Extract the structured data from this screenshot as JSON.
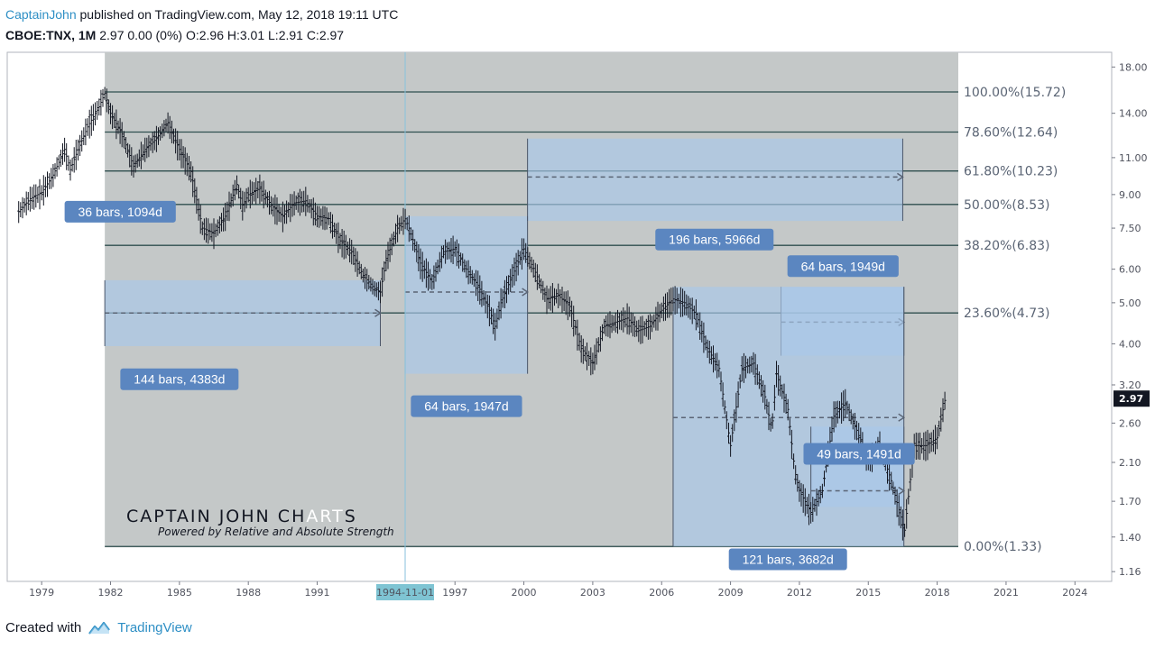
{
  "header": {
    "author": "CaptainJohn",
    "published": "published on TradingView.com, May 12, 2018 19:11 UTC"
  },
  "ohlc": {
    "symbol": "CBOE:TNX, 1M",
    "values": "2.97 0.00 (0%) O:2.96 H:3.01 L:2.91 C:2.97"
  },
  "footer": {
    "created_with": "Created with",
    "brand": "TradingView"
  },
  "watermark": {
    "title": "CAPTAIN JOHN CHARTS",
    "subtitle": "Powered by Relative and  Absolute Strength"
  },
  "colors": {
    "fib_bg": "#c4c8c8",
    "box_fill": "#a9c8ea",
    "label_bg": "#5b86c0",
    "fib_line": "#2f4f4f",
    "price_line": "#131722",
    "crosshair": "#88c2dc",
    "date_highlight": "#7fc4d3",
    "price_badge": "#131722",
    "accent": "#2e8fc5"
  },
  "chart_data": {
    "type": "line",
    "series": [
      {
        "x": [
          1978.0,
          1978.5,
          1979.0,
          1979.5,
          1980.0,
          1980.25,
          1980.5,
          1981.0,
          1981.5,
          1981.75,
          1982.0,
          1982.5,
          1983.0,
          1983.5,
          1984.0,
          1984.5,
          1985.0,
          1985.5,
          1986.0,
          1986.5,
          1987.0,
          1987.5,
          1987.75,
          1988.0,
          1988.5,
          1989.0,
          1989.5,
          1990.0,
          1990.5,
          1991.0,
          1991.5,
          1992.0,
          1992.5,
          1993.0,
          1993.5,
          1993.75,
          1994.0,
          1994.5,
          1994.83,
          1995.0,
          1995.5,
          1996.0,
          1996.5,
          1997.0,
          1997.5,
          1998.0,
          1998.5,
          1998.75,
          1999.0,
          1999.5,
          2000.0,
          2000.5,
          2001.0,
          2001.5,
          2002.0,
          2002.5,
          2003.0,
          2003.5,
          2004.0,
          2004.5,
          2005.0,
          2005.5,
          2006.0,
          2006.5,
          2007.0,
          2007.5,
          2008.0,
          2008.5,
          2008.9,
          2009.0,
          2009.5,
          2010.0,
          2010.5,
          2010.8,
          2011.0,
          2011.5,
          2011.8,
          2012.0,
          2012.5,
          2013.0,
          2013.5,
          2014.0,
          2014.5,
          2015.0,
          2015.5,
          2016.0,
          2016.5,
          2016.55,
          2017.0,
          2017.5,
          2018.0,
          2018.35
        ],
        "y": [
          8.2,
          8.8,
          9.1,
          10.0,
          11.5,
          10.3,
          11.2,
          13.0,
          14.5,
          15.6,
          14.0,
          12.5,
          10.5,
          11.5,
          12.2,
          13.3,
          11.5,
          10.2,
          7.5,
          7.3,
          8.0,
          9.5,
          8.5,
          9.0,
          9.3,
          8.5,
          8.0,
          8.6,
          8.7,
          8.0,
          7.9,
          7.0,
          6.6,
          5.8,
          5.4,
          5.3,
          6.3,
          7.5,
          7.9,
          7.5,
          6.2,
          5.6,
          6.6,
          6.7,
          6.0,
          5.5,
          4.8,
          4.4,
          5.0,
          5.8,
          6.7,
          5.9,
          5.1,
          5.2,
          4.9,
          3.9,
          3.6,
          4.4,
          4.5,
          4.6,
          4.3,
          4.4,
          4.8,
          5.1,
          5.0,
          4.7,
          3.9,
          3.5,
          2.5,
          2.3,
          3.5,
          3.6,
          3.0,
          2.5,
          3.4,
          2.8,
          2.0,
          1.8,
          1.6,
          1.8,
          2.7,
          2.9,
          2.5,
          2.1,
          2.3,
          1.9,
          1.5,
          1.4,
          2.3,
          2.3,
          2.4,
          2.97
        ]
      }
    ],
    "x_ticks": [
      "1979",
      "1982",
      "1985",
      "1988",
      "1991",
      "1994-11-01",
      "1997",
      "2000",
      "2003",
      "2006",
      "2009",
      "2012",
      "2015",
      "2018",
      "2021",
      "2024"
    ],
    "x_tick_values": [
      1979,
      1982,
      1985,
      1988,
      1991,
      1994.83,
      1997,
      2000,
      2003,
      2006,
      2009,
      2012,
      2015,
      2018,
      2021,
      2024
    ],
    "y_ticks": [
      "18.00",
      "14.00",
      "11.00",
      "9.00",
      "7.50",
      "6.00",
      "5.00",
      "4.00",
      "3.20",
      "2.60",
      "2.10",
      "1.70",
      "1.40",
      "1.16"
    ],
    "y_tick_values": [
      18,
      14,
      11,
      9,
      7.5,
      6,
      5,
      4,
      3.2,
      2.6,
      2.1,
      1.7,
      1.4,
      1.16
    ],
    "y_scale": "log",
    "ylim": [
      1.1,
      19.5
    ],
    "xlim": [
      1977.5,
      2025.6
    ],
    "last_price": "2.97",
    "last_price_value": 2.97,
    "fib_levels": [
      {
        "label": "100.00%(15.72)",
        "value": 15.72
      },
      {
        "label": "78.60%(12.64)",
        "value": 12.64
      },
      {
        "label": "61.80%(10.23)",
        "value": 10.23
      },
      {
        "label": "50.00%(8.53)",
        "value": 8.53
      },
      {
        "label": "38.20%(6.83)",
        "value": 6.83
      },
      {
        "label": "23.60%(4.73)",
        "value": 4.73
      },
      {
        "label": "0.00%(1.33)",
        "value": 1.33
      }
    ],
    "fib_range": {
      "x_start": 1981.75,
      "x_end": 2016.55
    },
    "crosshair_x": 1994.83,
    "bars_annotations": [
      {
        "label": "36 bars, 1094d",
        "x_start": 1980.3,
        "x_end": 1983.3,
        "y_top": 8.6,
        "y_bottom": 8.2,
        "arrow_y": 8.4
      },
      {
        "label": "144 bars, 4383d",
        "x_start": 1981.75,
        "x_end": 1993.75,
        "y_top": 5.65,
        "y_bottom": 3.95,
        "arrow_y": 4.73
      },
      {
        "label": "64 bars, 1947d",
        "x_start": 1994.83,
        "x_end": 2000.16,
        "y_top": 8.0,
        "y_bottom": 3.4,
        "arrow_y": 5.3
      },
      {
        "label": "196 bars, 5966d",
        "x_start": 2000.16,
        "x_end": 2016.5,
        "y_top": 12.2,
        "y_bottom": 7.8,
        "arrow_y": 9.9
      },
      {
        "label": "64 bars, 1949d",
        "x_start": 2011.2,
        "x_end": 2016.55,
        "y_top": 5.45,
        "y_bottom": 3.75,
        "arrow_y": 4.5
      },
      {
        "label": "121 bars, 3682d",
        "x_start": 2006.5,
        "x_end": 2016.55,
        "y_top": 5.45,
        "y_bottom": 1.33,
        "arrow_y": 2.68
      },
      {
        "label": "49 bars, 1491d",
        "x_start": 2012.5,
        "x_end": 2016.55,
        "y_top": 2.55,
        "y_bottom": 1.65,
        "arrow_y": 1.8
      }
    ]
  }
}
